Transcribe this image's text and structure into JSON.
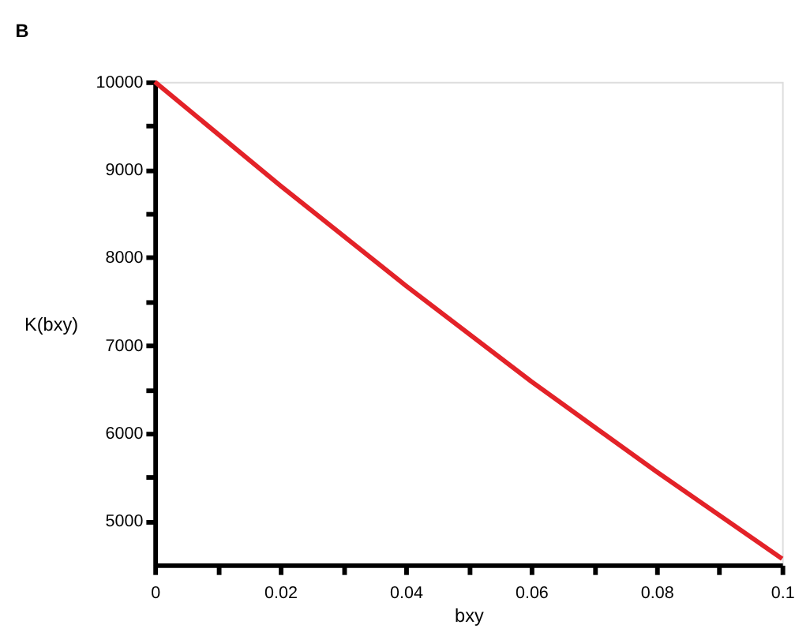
{
  "chart_data": {
    "type": "line",
    "title": "B",
    "xlabel": "bxy",
    "ylabel": "K(bxy)",
    "x": [
      0,
      0.02,
      0.04,
      0.06,
      0.08,
      0.1
    ],
    "series": [
      {
        "color": "#e32228",
        "values": [
          10000,
          8820,
          7680,
          6590,
          5560,
          4570
        ]
      }
    ],
    "xlim": [
      0,
      0.1
    ],
    "ylim": [
      4500,
      10000
    ],
    "xticks": [
      0,
      {
        "value": 0.01,
        "label": null
      },
      0.02,
      {
        "value": 0.03,
        "label": null
      },
      0.04,
      {
        "value": 0.05,
        "label": null
      },
      0.06,
      {
        "value": 0.07,
        "label": null
      },
      0.08,
      {
        "value": 0.09,
        "label": null
      },
      0.1
    ],
    "yticks": [
      5000,
      {
        "value": 5500,
        "label": null
      },
      6000,
      {
        "value": 6500,
        "label": null
      },
      7000,
      {
        "value": 7500,
        "label": null
      },
      8000,
      {
        "value": 8500,
        "label": null
      },
      9000,
      {
        "value": 9500,
        "label": null
      },
      10000
    ],
    "grid": false,
    "marker": "none",
    "line_style": "solid"
  }
}
